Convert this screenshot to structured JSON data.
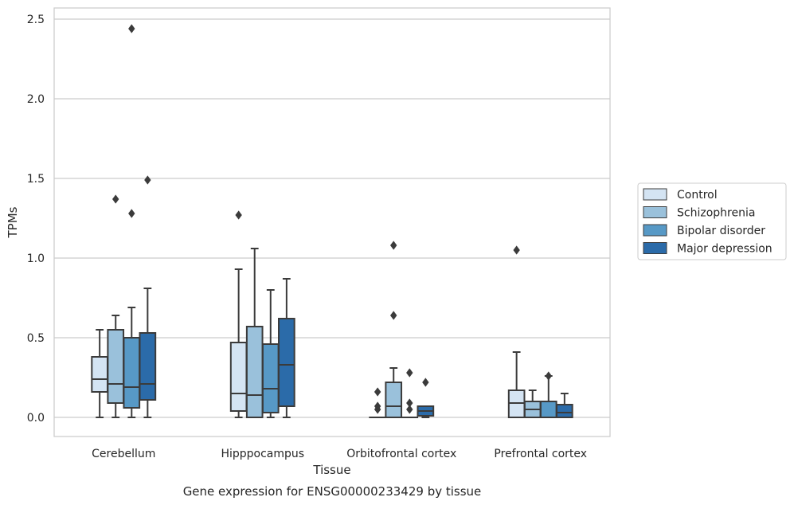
{
  "chart_data": {
    "type": "box",
    "title": "",
    "caption": "Gene expression for ENSG00000233429 by tissue",
    "xlabel": "Tissue",
    "ylabel": "TPMs",
    "ylim": [
      -0.12,
      2.57
    ],
    "yticks": [
      0.0,
      0.5,
      1.0,
      1.5,
      2.0,
      2.5
    ],
    "ytick_labels": [
      "0.0",
      "0.5",
      "1.0",
      "1.5",
      "2.0",
      "2.5"
    ],
    "grid": "horizontal",
    "legend_position": "right",
    "categories": [
      "Cerebellum",
      "Hipppocampus",
      "Orbitofrontal cortex",
      "Prefrontal cortex"
    ],
    "series": [
      {
        "name": "Control",
        "color": "#d4e4f3",
        "boxes": [
          {
            "whislo": 0.0,
            "q1": 0.16,
            "med": 0.24,
            "q3": 0.38,
            "whishi": 0.55,
            "fliers": []
          },
          {
            "whislo": 0.0,
            "q1": 0.04,
            "med": 0.15,
            "q3": 0.47,
            "whishi": 0.93,
            "fliers": [
              1.27
            ]
          },
          {
            "whislo": 0.0,
            "q1": 0.0,
            "med": 0.0,
            "q3": 0.0,
            "whishi": 0.0,
            "fliers": [
              0.05,
              0.07,
              0.16
            ]
          },
          {
            "whislo": 0.0,
            "q1": 0.0,
            "med": 0.09,
            "q3": 0.17,
            "whishi": 0.41,
            "fliers": [
              1.05
            ]
          }
        ]
      },
      {
        "name": "Schizophrenia",
        "color": "#9ac1db",
        "boxes": [
          {
            "whislo": 0.0,
            "q1": 0.09,
            "med": 0.21,
            "q3": 0.55,
            "whishi": 0.64,
            "fliers": [
              1.37
            ]
          },
          {
            "whislo": 0.0,
            "q1": 0.0,
            "med": 0.14,
            "q3": 0.57,
            "whishi": 1.06,
            "fliers": []
          },
          {
            "whislo": 0.0,
            "q1": 0.0,
            "med": 0.07,
            "q3": 0.22,
            "whishi": 0.31,
            "fliers": [
              0.64,
              1.08
            ]
          },
          {
            "whislo": 0.0,
            "q1": 0.0,
            "med": 0.05,
            "q3": 0.1,
            "whishi": 0.17,
            "fliers": []
          }
        ]
      },
      {
        "name": "Bipolar disorder",
        "color": "#5799c6",
        "boxes": [
          {
            "whislo": 0.0,
            "q1": 0.06,
            "med": 0.19,
            "q3": 0.5,
            "whishi": 0.69,
            "fliers": [
              1.28,
              2.44
            ]
          },
          {
            "whislo": 0.0,
            "q1": 0.03,
            "med": 0.18,
            "q3": 0.46,
            "whishi": 0.8,
            "fliers": []
          },
          {
            "whislo": 0.0,
            "q1": 0.0,
            "med": 0.0,
            "q3": 0.0,
            "whishi": 0.0,
            "fliers": [
              0.05,
              0.09,
              0.28
            ]
          },
          {
            "whislo": 0.0,
            "q1": 0.0,
            "med": 0.0,
            "q3": 0.1,
            "whishi": 0.26,
            "fliers": [
              0.26
            ]
          }
        ]
      },
      {
        "name": "Major depression",
        "color": "#2b6ba9",
        "boxes": [
          {
            "whislo": 0.0,
            "q1": 0.11,
            "med": 0.21,
            "q3": 0.53,
            "whishi": 0.81,
            "fliers": [
              1.49
            ]
          },
          {
            "whislo": 0.0,
            "q1": 0.07,
            "med": 0.33,
            "q3": 0.62,
            "whishi": 0.87,
            "fliers": []
          },
          {
            "whislo": 0.0,
            "q1": 0.01,
            "med": 0.04,
            "q3": 0.07,
            "whishi": 0.07,
            "fliers": [
              0.22
            ]
          },
          {
            "whislo": 0.0,
            "q1": 0.0,
            "med": 0.03,
            "q3": 0.08,
            "whishi": 0.15,
            "fliers": []
          }
        ]
      }
    ]
  }
}
